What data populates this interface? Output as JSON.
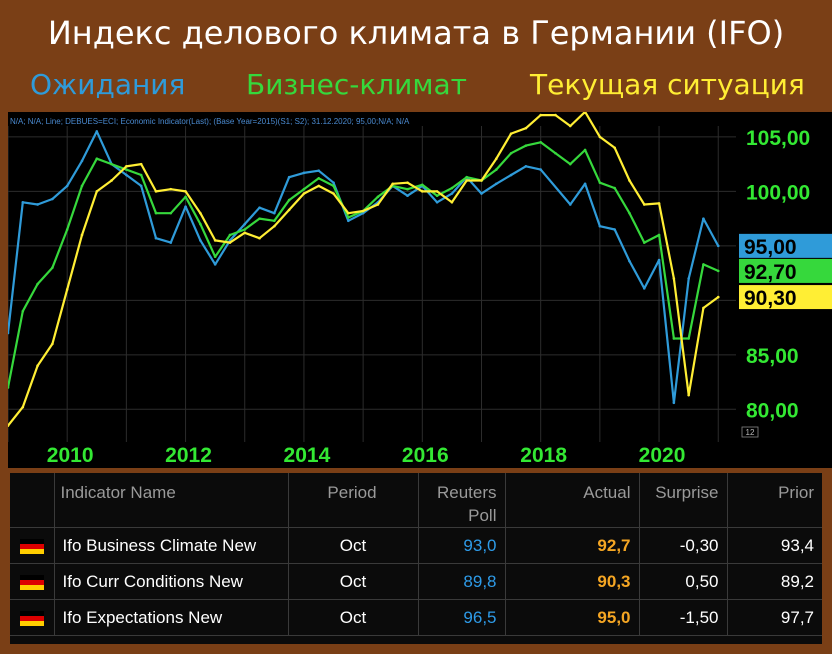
{
  "header": {
    "title": "Индекс делового климата в Германии (IFO)",
    "legend": [
      {
        "label": "Ожидания",
        "color": "#2f9bd9"
      },
      {
        "label": "Бизнес-климат",
        "color": "#36d83c"
      },
      {
        "label": "Текущая ситуация",
        "color": "#ffee34"
      }
    ]
  },
  "chart_data": {
    "type": "line",
    "info_line": "N/A; N/A; Line; DEBUES=ECI; Economic Indicator(Last); (Base Year=2015)(S1; S2); 31.12.2020; 95,00;N/A; N/A",
    "x_ticks": [
      "2010",
      "2012",
      "2014",
      "2016",
      "2018",
      "2020"
    ],
    "y_ticks": [
      "105,00",
      "100,00",
      "95,00",
      "85,00",
      "80,00"
    ],
    "y_scale_corner": "12",
    "ylim": [
      77,
      106
    ],
    "series": [
      {
        "name": "Ожидания",
        "color": "#2f9bd9",
        "last_label": "95,00",
        "points": [
          [
            2009.0,
            87.0
          ],
          [
            2009.25,
            99.0
          ],
          [
            2009.5,
            98.8
          ],
          [
            2009.75,
            99.3
          ],
          [
            2010.0,
            100.5
          ],
          [
            2010.25,
            102.8
          ],
          [
            2010.5,
            105.5
          ],
          [
            2010.75,
            102.5
          ],
          [
            2011.0,
            101.5
          ],
          [
            2011.25,
            100.5
          ],
          [
            2011.5,
            95.7
          ],
          [
            2011.75,
            95.3
          ],
          [
            2012.0,
            98.6
          ],
          [
            2012.25,
            95.5
          ],
          [
            2012.5,
            93.3
          ],
          [
            2012.75,
            95.5
          ],
          [
            2013.0,
            97.0
          ],
          [
            2013.25,
            98.5
          ],
          [
            2013.5,
            98.0
          ],
          [
            2013.75,
            101.3
          ],
          [
            2014.0,
            101.7
          ],
          [
            2014.25,
            101.9
          ],
          [
            2014.5,
            100.8
          ],
          [
            2014.75,
            97.3
          ],
          [
            2015.0,
            98.0
          ],
          [
            2015.25,
            99.0
          ],
          [
            2015.5,
            100.5
          ],
          [
            2015.75,
            99.6
          ],
          [
            2016.0,
            100.5
          ],
          [
            2016.25,
            99.0
          ],
          [
            2016.5,
            99.8
          ],
          [
            2016.75,
            101.3
          ],
          [
            2017.0,
            99.8
          ],
          [
            2017.25,
            100.7
          ],
          [
            2017.5,
            101.5
          ],
          [
            2017.75,
            102.3
          ],
          [
            2018.0,
            102.0
          ],
          [
            2018.5,
            98.8
          ],
          [
            2018.75,
            100.7
          ],
          [
            2019.0,
            96.8
          ],
          [
            2019.25,
            96.5
          ],
          [
            2019.5,
            93.6
          ],
          [
            2019.75,
            91.1
          ],
          [
            2020.0,
            93.7
          ],
          [
            2020.25,
            80.6
          ],
          [
            2020.5,
            92.0
          ],
          [
            2020.75,
            97.5
          ],
          [
            2021.0,
            95.0
          ]
        ]
      },
      {
        "name": "Бизнес-климат",
        "color": "#36d83c",
        "last_label": "92,70",
        "points": [
          [
            2009.0,
            82.0
          ],
          [
            2009.25,
            89.0
          ],
          [
            2009.5,
            91.5
          ],
          [
            2009.75,
            93.0
          ],
          [
            2010.0,
            96.5
          ],
          [
            2010.25,
            100.5
          ],
          [
            2010.5,
            103.0
          ],
          [
            2010.75,
            102.5
          ],
          [
            2011.0,
            102.0
          ],
          [
            2011.25,
            101.5
          ],
          [
            2011.5,
            98.0
          ],
          [
            2011.75,
            98.0
          ],
          [
            2012.0,
            99.5
          ],
          [
            2012.25,
            97.0
          ],
          [
            2012.5,
            94.0
          ],
          [
            2012.75,
            96.0
          ],
          [
            2013.0,
            96.5
          ],
          [
            2013.25,
            97.5
          ],
          [
            2013.5,
            97.3
          ],
          [
            2013.75,
            99.2
          ],
          [
            2014.0,
            100.2
          ],
          [
            2014.25,
            101.2
          ],
          [
            2014.5,
            100.5
          ],
          [
            2014.75,
            97.6
          ],
          [
            2015.0,
            98.2
          ],
          [
            2015.25,
            99.5
          ],
          [
            2015.5,
            100.5
          ],
          [
            2015.75,
            100.2
          ],
          [
            2016.0,
            100.6
          ],
          [
            2016.25,
            99.6
          ],
          [
            2016.5,
            100.3
          ],
          [
            2016.75,
            101.3
          ],
          [
            2017.0,
            101.0
          ],
          [
            2017.25,
            102.0
          ],
          [
            2017.5,
            103.5
          ],
          [
            2017.75,
            104.2
          ],
          [
            2018.0,
            104.5
          ],
          [
            2018.25,
            103.5
          ],
          [
            2018.5,
            102.5
          ],
          [
            2018.75,
            103.8
          ],
          [
            2019.0,
            100.8
          ],
          [
            2019.25,
            100.3
          ],
          [
            2019.5,
            98.0
          ],
          [
            2019.75,
            95.3
          ],
          [
            2020.0,
            96.0
          ],
          [
            2020.25,
            86.5
          ],
          [
            2020.5,
            86.5
          ],
          [
            2020.75,
            93.3
          ],
          [
            2021.0,
            92.7
          ]
        ]
      },
      {
        "name": "Текущая ситуация",
        "color": "#ffee34",
        "last_label": "90,30",
        "points": [
          [
            2009.0,
            78.5
          ],
          [
            2009.25,
            80.2
          ],
          [
            2009.5,
            84.0
          ],
          [
            2009.75,
            86.0
          ],
          [
            2010.0,
            91.0
          ],
          [
            2010.25,
            96.0
          ],
          [
            2010.5,
            100.0
          ],
          [
            2010.75,
            101.0
          ],
          [
            2011.0,
            102.3
          ],
          [
            2011.25,
            102.5
          ],
          [
            2011.5,
            100.0
          ],
          [
            2011.75,
            100.2
          ],
          [
            2012.0,
            100.0
          ],
          [
            2012.25,
            98.0
          ],
          [
            2012.5,
            95.5
          ],
          [
            2012.75,
            95.3
          ],
          [
            2013.0,
            96.2
          ],
          [
            2013.25,
            95.7
          ],
          [
            2013.5,
            96.8
          ],
          [
            2013.75,
            98.3
          ],
          [
            2014.0,
            99.8
          ],
          [
            2014.25,
            100.5
          ],
          [
            2014.5,
            99.8
          ],
          [
            2014.75,
            98.0
          ],
          [
            2015.0,
            98.2
          ],
          [
            2015.25,
            98.8
          ],
          [
            2015.5,
            100.7
          ],
          [
            2015.75,
            100.8
          ],
          [
            2016.0,
            100.0
          ],
          [
            2016.25,
            100.0
          ],
          [
            2016.5,
            99.0
          ],
          [
            2016.75,
            101.0
          ],
          [
            2017.0,
            101.0
          ],
          [
            2017.25,
            103.0
          ],
          [
            2017.5,
            105.3
          ],
          [
            2017.75,
            105.8
          ],
          [
            2018.0,
            107.0
          ],
          [
            2018.25,
            107.0
          ],
          [
            2018.5,
            106.0
          ],
          [
            2018.75,
            107.3
          ],
          [
            2019.0,
            105.0
          ],
          [
            2019.25,
            104.0
          ],
          [
            2019.5,
            101.0
          ],
          [
            2019.75,
            98.8
          ],
          [
            2020.0,
            98.9
          ],
          [
            2020.25,
            92.0
          ],
          [
            2020.5,
            81.3
          ],
          [
            2020.75,
            89.3
          ],
          [
            2021.0,
            90.3
          ]
        ]
      }
    ]
  },
  "table": {
    "headers": {
      "flag": "",
      "indicator": "Indicator Name",
      "period": "Period",
      "poll_line1": "Reuters",
      "poll_line2": "Poll",
      "actual": "Actual",
      "surprise": "Surprise",
      "prior": "Prior"
    },
    "rows": [
      {
        "name": "Ifo Business Climate New",
        "period": "Oct",
        "poll": "93,0",
        "actual": "92,7",
        "surprise": "-0,30",
        "prior": "93,4"
      },
      {
        "name": "Ifo Curr Conditions New",
        "period": "Oct",
        "poll": "89,8",
        "actual": "90,3",
        "surprise": "0,50",
        "prior": "89,2"
      },
      {
        "name": "Ifo Expectations New",
        "period": "Oct",
        "poll": "96,5",
        "actual": "95,0",
        "surprise": "-1,50",
        "prior": "97,7"
      }
    ],
    "flag_colors": [
      "#000000",
      "#dd0000",
      "#ffce00"
    ]
  }
}
